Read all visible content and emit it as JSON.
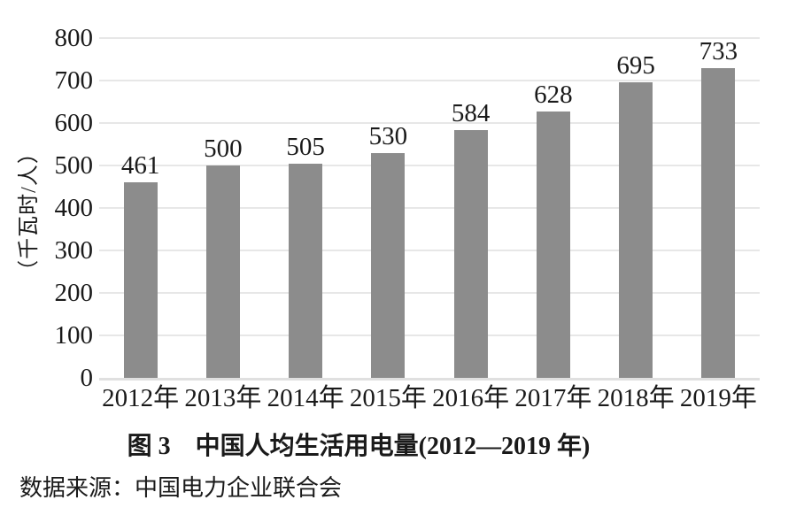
{
  "figure": {
    "caption": "图 3　中国人均生活用电量(2012—2019 年)",
    "source": "数据来源：中国电力企业联合会"
  },
  "chart_data": {
    "type": "bar",
    "title": "图 3　中国人均生活用电量(2012—2019 年)",
    "categories": [
      "2012年",
      "2013年",
      "2014年",
      "2015年",
      "2016年",
      "2017年",
      "2018年",
      "2019年"
    ],
    "values": [
      461,
      500,
      505,
      530,
      584,
      628,
      695,
      733
    ],
    "data_labels": [
      "461",
      "500",
      "505",
      "530",
      "584",
      "628",
      "695",
      "733"
    ],
    "xlabel": "",
    "ylabel": "（千瓦时/人）",
    "ylim": [
      0,
      800
    ],
    "yticks": [
      0,
      100,
      200,
      300,
      400,
      500,
      600,
      700,
      800
    ],
    "grid": "horizontal",
    "legend": "none",
    "bar_color": "#8c8c8c",
    "gridline_color": "#e7e7e7",
    "axis_line_color": "#e0e0e0",
    "text_color": "#1a1a1a"
  }
}
